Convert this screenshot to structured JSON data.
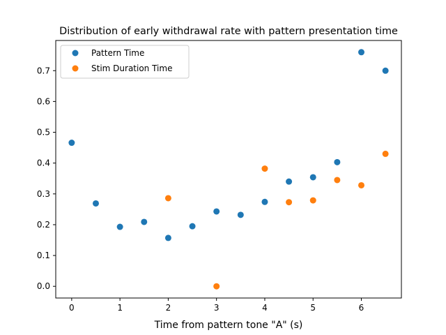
{
  "chart_data": {
    "type": "scatter",
    "title": "Distribution of early withdrawal rate with pattern presentation time",
    "xlabel": "Time from pattern tone \"A\" (s)",
    "ylabel": "",
    "xlim": [
      -0.33,
      6.83
    ],
    "ylim": [
      -0.038,
      0.798
    ],
    "xticks": [
      0,
      1,
      2,
      3,
      4,
      5,
      6
    ],
    "yticks": [
      0.0,
      0.1,
      0.2,
      0.3,
      0.4,
      0.5,
      0.6,
      0.7
    ],
    "ytick_labels": [
      "0.0",
      "0.1",
      "0.2",
      "0.3",
      "0.4",
      "0.5",
      "0.6",
      "0.7"
    ],
    "legend_position": "top-left",
    "grid": false,
    "series": [
      {
        "name": "Pattern Time",
        "color": "#1f77b4",
        "x": [
          0,
          0.5,
          1,
          1.5,
          2,
          2.5,
          3,
          3.5,
          4,
          4.5,
          5,
          5.5,
          6,
          6.5
        ],
        "y": [
          0.466,
          0.269,
          0.193,
          0.209,
          0.157,
          0.195,
          0.243,
          0.232,
          0.274,
          0.34,
          0.354,
          0.403,
          0.76,
          0.7
        ]
      },
      {
        "name": "Stim Duration Time",
        "color": "#ff7f0e",
        "x": [
          2,
          3,
          4,
          4.5,
          5,
          5.5,
          6,
          6.5
        ],
        "y": [
          0.286,
          0.0,
          0.382,
          0.273,
          0.279,
          0.345,
          0.328,
          0.43
        ]
      }
    ]
  }
}
